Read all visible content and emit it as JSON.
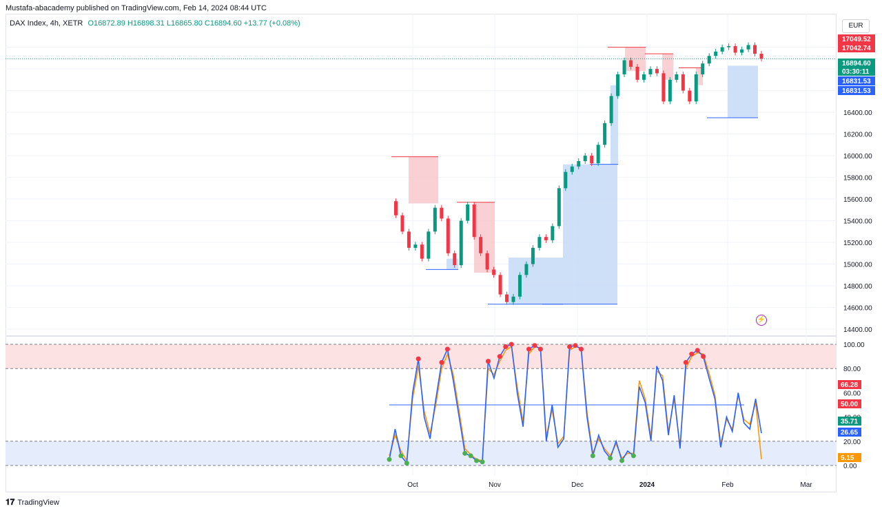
{
  "header": {
    "published": "Mustafa-abacademy published on TradingView.com, Feb 14, 2024 08:44 UTC",
    "symbol": "DAX Index, 4h, XETR",
    "ohlc": "O16872.89 H16898.31 L16865.80 C16894.60 +13.77 (+0.08%)",
    "currency": "EUR"
  },
  "footer": {
    "brand": "TradingView",
    "logo": "tv-logo-icon"
  },
  "colors": {
    "up": "#089981",
    "down": "#f23645",
    "supply": "#f7c5c9",
    "demand": "#c9dbf7",
    "k": "#2962ff",
    "d": "#ff9800"
  },
  "chart_data": [
    {
      "type": "candlestick",
      "title": "DAX Index, 4h, XETR",
      "x_ticks": [
        "Oct",
        "Nov",
        "Dec",
        "2024",
        "Feb",
        "Mar"
      ],
      "y_ticks": [
        14400,
        14600,
        14800,
        15000,
        15200,
        15400,
        15600,
        15800,
        16000,
        16200,
        16400,
        16600,
        16800,
        17000
      ],
      "ylim": [
        14400,
        17150
      ],
      "price_path": [
        15580,
        15450,
        15300,
        15150,
        15180,
        15050,
        15300,
        15520,
        15420,
        15100,
        14990,
        15400,
        15550,
        15250,
        15100,
        14950,
        14900,
        14720,
        14650,
        14700,
        14900,
        15000,
        15150,
        15250,
        15220,
        15350,
        15700,
        15850,
        15900,
        15950,
        16000,
        15930,
        16100,
        16300,
        16550,
        16750,
        16880,
        16820,
        16700,
        16750,
        16800,
        16760,
        16500,
        16700,
        16750,
        16600,
        16500,
        16750,
        16850,
        16920,
        16960,
        17000,
        17010,
        16950,
        16980,
        17020,
        16940,
        16894.6
      ],
      "price_labels": [
        {
          "value": "17049.52",
          "color": "#f23645"
        },
        {
          "value": "17042.74",
          "color": "#f23645"
        },
        {
          "value": "16894.60",
          "color": "#089981"
        },
        {
          "value": "03:30:11",
          "color": "#089981"
        },
        {
          "value": "16831.53",
          "color": "#2962ff"
        },
        {
          "value": "16831.53",
          "color": "#2962ff"
        }
      ],
      "supply_zones": [
        {
          "top": 15990,
          "bottom": 15560
        },
        {
          "top": 15570,
          "bottom": 14920
        },
        {
          "top": 17000,
          "bottom": 16780
        },
        {
          "top": 16940,
          "bottom": 16700
        },
        {
          "top": 16810,
          "bottom": 16650
        }
      ],
      "demand_zones": [
        {
          "top": 15050,
          "bottom": 14950
        },
        {
          "top": 15060,
          "bottom": 14630
        },
        {
          "top": 15920,
          "bottom": 14630
        },
        {
          "top": 16650,
          "bottom": 15920
        },
        {
          "top": 16830,
          "bottom": 16350
        }
      ]
    },
    {
      "type": "line",
      "title": "Stochastic",
      "y_ticks": [
        0,
        20,
        40,
        60,
        80,
        100
      ],
      "ylim": [
        0,
        100
      ],
      "overbought": 80,
      "oversold": 20,
      "midline": 50,
      "series": [
        {
          "name": "%K",
          "color": "#2962ff",
          "values": [
            5,
            30,
            8,
            2,
            60,
            88,
            40,
            22,
            55,
            85,
            96,
            70,
            40,
            10,
            8,
            4,
            3,
            86,
            72,
            90,
            98,
            100,
            60,
            32,
            96,
            99,
            96,
            20,
            50,
            15,
            22,
            98,
            99,
            96,
            40,
            8,
            25,
            12,
            6,
            20,
            4,
            12,
            8,
            65,
            52,
            20,
            82,
            70,
            25,
            58,
            14,
            85,
            92,
            95,
            90,
            72,
            55,
            15,
            40,
            28,
            60,
            35,
            30,
            55,
            26.65
          ]
        },
        {
          "name": "%D",
          "color": "#ff9800",
          "values": [
            8,
            25,
            12,
            4,
            55,
            82,
            45,
            26,
            50,
            80,
            92,
            75,
            45,
            14,
            9,
            5,
            4,
            80,
            75,
            86,
            95,
            98,
            65,
            36,
            92,
            98,
            97,
            24,
            46,
            18,
            24,
            95,
            98,
            97,
            44,
            10,
            22,
            14,
            8,
            18,
            6,
            10,
            10,
            70,
            55,
            24,
            78,
            74,
            28,
            55,
            16,
            80,
            90,
            93,
            92,
            76,
            58,
            18,
            38,
            30,
            58,
            38,
            34,
            52,
            5.15
          ]
        }
      ],
      "value_labels": [
        {
          "value": "66.28",
          "color": "#f23645"
        },
        {
          "value": "50.00",
          "color": "#f23645"
        },
        {
          "value": "35.71",
          "color": "#089981"
        },
        {
          "value": "26.65",
          "color": "#2962ff"
        },
        {
          "value": "5.15",
          "color": "#ff9800"
        }
      ]
    }
  ]
}
